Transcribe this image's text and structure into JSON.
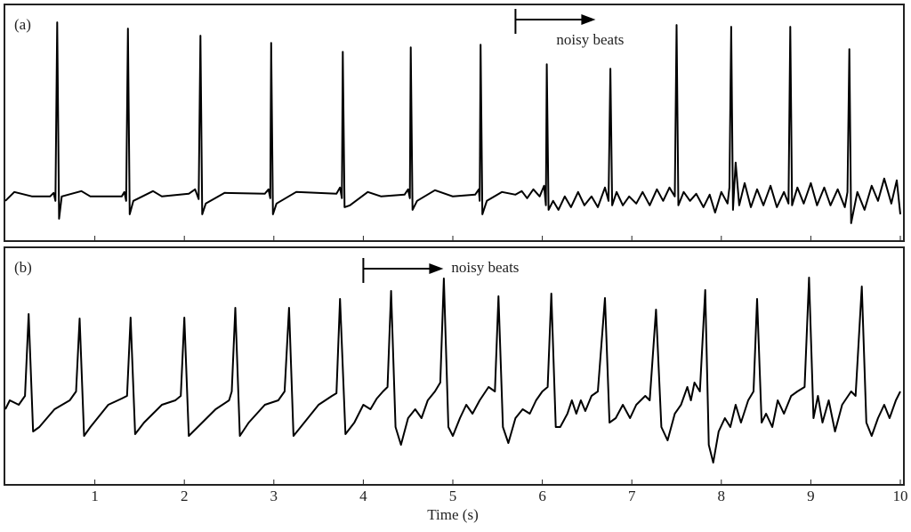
{
  "chart_data": [
    {
      "type": "line",
      "panel_label": "(a)",
      "color": "#000000",
      "annotation": {
        "text": "noisy beats",
        "x": 5.7
      },
      "xlim": [
        0,
        10
      ],
      "xticks": [
        1,
        2,
        3,
        4,
        5,
        6,
        7,
        8,
        9,
        10
      ],
      "ylim": [
        -0.5,
        2.15
      ],
      "x": [
        0,
        0.1,
        0.3,
        0.5,
        0.54,
        0.56,
        0.58,
        0.6,
        0.63,
        0.85,
        0.95,
        1.3,
        1.33,
        1.35,
        1.37,
        1.39,
        1.43,
        1.65,
        1.75,
        2.05,
        2.12,
        2.16,
        2.18,
        2.2,
        2.24,
        2.45,
        2.9,
        2.94,
        2.96,
        2.97,
        2.99,
        3.03,
        3.25,
        3.7,
        3.74,
        3.76,
        3.77,
        3.79,
        3.85,
        4.05,
        4.2,
        4.46,
        4.5,
        4.52,
        4.53,
        4.55,
        4.6,
        4.8,
        5.0,
        5.25,
        5.29,
        5.3,
        5.31,
        5.33,
        5.38,
        5.55,
        5.7,
        5.77,
        5.83,
        5.9,
        5.97,
        6.02,
        6.04,
        6.05,
        6.07,
        6.12,
        6.18,
        6.25,
        6.32,
        6.4,
        6.47,
        6.55,
        6.62,
        6.7,
        6.74,
        6.76,
        6.78,
        6.83,
        6.9,
        6.97,
        7.05,
        7.12,
        7.2,
        7.28,
        7.35,
        7.42,
        7.48,
        7.5,
        7.52,
        7.58,
        7.65,
        7.72,
        7.8,
        7.87,
        7.93,
        8.0,
        8.07,
        8.09,
        8.11,
        8.13,
        8.16,
        8.2,
        8.26,
        8.33,
        8.4,
        8.47,
        8.55,
        8.62,
        8.7,
        8.75,
        8.77,
        8.79,
        8.85,
        8.92,
        9.0,
        9.07,
        9.15,
        9.22,
        9.3,
        9.38,
        9.41,
        9.43,
        9.45,
        9.52,
        9.6,
        9.68,
        9.75,
        9.82,
        9.9,
        9.96,
        10
      ],
      "values": [
        -0.05,
        0.05,
        0.0,
        0.0,
        0.04,
        -0.05,
        1.95,
        -0.25,
        0,
        0.06,
        0.0,
        0.0,
        0.05,
        -0.05,
        1.88,
        -0.2,
        -0.05,
        0.06,
        0,
        0.03,
        0.08,
        -0.03,
        1.8,
        -0.2,
        -0.08,
        0.04,
        0.03,
        0.08,
        -0.02,
        1.72,
        -0.2,
        -0.08,
        0.05,
        0.03,
        0.1,
        -0.02,
        1.62,
        -0.12,
        -0.1,
        0.05,
        0.0,
        0.02,
        0.08,
        -0.02,
        1.67,
        -0.15,
        -0.05,
        0.07,
        0.0,
        0.02,
        0.08,
        -0.05,
        1.7,
        -0.2,
        -0.05,
        0.05,
        0.02,
        0.06,
        -0.02,
        0.08,
        0.0,
        0.12,
        -0.1,
        1.48,
        -0.15,
        -0.05,
        -0.15,
        0.0,
        -0.12,
        0.05,
        -0.1,
        0.0,
        -0.12,
        0.1,
        -0.05,
        1.43,
        -0.1,
        0.05,
        -0.1,
        0.0,
        -0.08,
        0.05,
        -0.1,
        0.08,
        -0.05,
        0.1,
        0.0,
        1.92,
        -0.1,
        0.05,
        -0.05,
        0.03,
        -0.12,
        0.02,
        -0.18,
        0.05,
        -0.08,
        0.1,
        1.9,
        -0.15,
        0.38,
        -0.1,
        0.15,
        -0.12,
        0.08,
        -0.1,
        0.12,
        -0.12,
        0.05,
        -0.08,
        1.9,
        -0.1,
        0.1,
        -0.08,
        0.15,
        -0.1,
        0.1,
        -0.1,
        0.08,
        -0.12,
        0.05,
        1.65,
        -0.3,
        0.05,
        -0.15,
        0.12,
        -0.05,
        0.2,
        -0.08,
        0.18,
        -0.2
      ]
    },
    {
      "type": "line",
      "panel_label": "(b)",
      "color": "#000000",
      "annotation": {
        "text": "noisy beats",
        "x": 4
      },
      "xlabel": "Time (s)",
      "xlim": [
        0,
        10
      ],
      "xticks": [
        1,
        2,
        3,
        4,
        5,
        6,
        7,
        8,
        9,
        10
      ],
      "ylim": [
        -0.85,
        1.82
      ],
      "x": [
        0,
        0.05,
        0.15,
        0.22,
        0.26,
        0.31,
        0.38,
        0.55,
        0.72,
        0.79,
        0.83,
        0.88,
        0.95,
        1.15,
        1.3,
        1.36,
        1.4,
        1.45,
        1.55,
        1.75,
        1.9,
        1.96,
        2.0,
        2.05,
        2.15,
        2.35,
        2.5,
        2.53,
        2.57,
        2.62,
        2.72,
        2.9,
        3.05,
        3.12,
        3.17,
        3.22,
        3.3,
        3.5,
        3.65,
        3.7,
        3.74,
        3.8,
        3.9,
        4.0,
        4.08,
        4.15,
        4.22,
        4.27,
        4.31,
        4.36,
        4.42,
        4.5,
        4.58,
        4.65,
        4.72,
        4.8,
        4.86,
        4.9,
        4.95,
        5.0,
        5.08,
        5.15,
        5.22,
        5.3,
        5.4,
        5.47,
        5.51,
        5.56,
        5.62,
        5.7,
        5.78,
        5.86,
        5.93,
        6.0,
        6.06,
        6.1,
        6.15,
        6.2,
        6.28,
        6.33,
        6.38,
        6.43,
        6.48,
        6.55,
        6.62,
        6.7,
        6.75,
        6.82,
        6.9,
        6.98,
        7.05,
        7.15,
        7.2,
        7.27,
        7.33,
        7.4,
        7.48,
        7.55,
        7.62,
        7.66,
        7.7,
        7.76,
        7.82,
        7.86,
        7.91,
        7.97,
        8.04,
        8.1,
        8.16,
        8.22,
        8.3,
        8.36,
        8.4,
        8.45,
        8.5,
        8.57,
        8.63,
        8.7,
        8.78,
        8.85,
        8.93,
        8.98,
        9.03,
        9.08,
        9.13,
        9.2,
        9.27,
        9.35,
        9.45,
        9.5,
        9.57,
        9.62,
        9.68,
        9.75,
        9.82,
        9.88,
        9.95,
        10
      ],
      "values": [
        0.0,
        0.1,
        0.05,
        0.15,
        1.07,
        -0.25,
        -0.2,
        0.0,
        0.1,
        0.2,
        1.02,
        -0.3,
        -0.2,
        0.05,
        0.12,
        0.15,
        1.03,
        -0.28,
        -0.15,
        0.05,
        0.1,
        0.15,
        1.03,
        -0.3,
        -0.2,
        0.0,
        0.1,
        0.2,
        1.14,
        -0.3,
        -0.15,
        0.05,
        0.1,
        0.2,
        1.14,
        -0.3,
        -0.2,
        0.05,
        0.15,
        0.18,
        1.24,
        -0.28,
        -0.15,
        0.05,
        0.0,
        0.12,
        0.2,
        0.25,
        1.33,
        -0.2,
        -0.4,
        -0.1,
        0.0,
        -0.1,
        0.1,
        0.2,
        0.3,
        1.47,
        -0.2,
        -0.3,
        -0.1,
        0.05,
        -0.05,
        0.1,
        0.25,
        0.2,
        1.27,
        -0.2,
        -0.38,
        -0.1,
        0.0,
        -0.05,
        0.1,
        0.2,
        0.25,
        1.3,
        -0.2,
        -0.2,
        -0.05,
        0.1,
        -0.05,
        0.1,
        -0.02,
        0.15,
        0.2,
        1.25,
        -0.15,
        -0.1,
        0.05,
        -0.1,
        0.05,
        0.15,
        0.1,
        1.12,
        -0.2,
        -0.35,
        -0.05,
        0.05,
        0.25,
        0.1,
        0.3,
        0.2,
        1.34,
        -0.4,
        -0.6,
        -0.25,
        -0.1,
        -0.2,
        0.05,
        -0.15,
        0.1,
        0.2,
        1.24,
        -0.15,
        -0.05,
        -0.2,
        0.1,
        -0.05,
        0.15,
        0.2,
        0.25,
        1.48,
        -0.1,
        0.15,
        -0.15,
        0.1,
        -0.25,
        0.05,
        0.2,
        0.15,
        1.38,
        -0.15,
        -0.3,
        -0.1,
        0.05,
        -0.1,
        0.1,
        0.2
      ]
    }
  ]
}
